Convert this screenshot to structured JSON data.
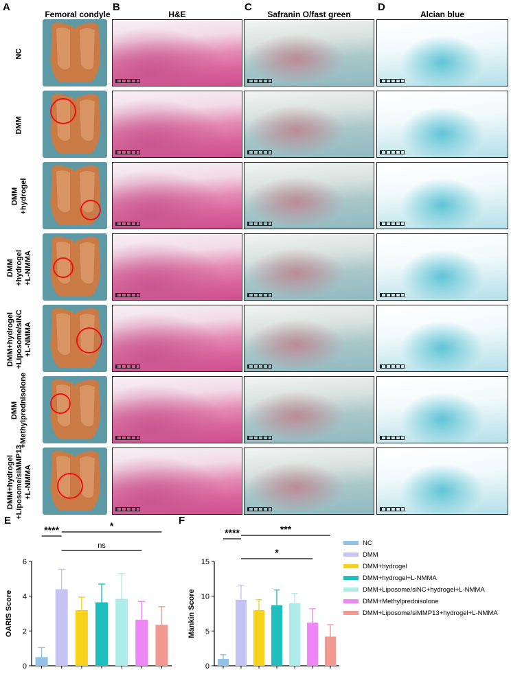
{
  "panels": {
    "A": "A",
    "B": "B",
    "C": "C",
    "D": "D",
    "E": "E",
    "F": "F"
  },
  "columns": {
    "condyle": "Femoral condyle",
    "he": "H&E",
    "safranin": "Safranin O/fast green",
    "alcian": "Alcian blue"
  },
  "rows": [
    {
      "line1": "NC",
      "line2": ""
    },
    {
      "line1": "DMM",
      "line2": ""
    },
    {
      "line1": "DMM",
      "line2": "+hydrogel"
    },
    {
      "line1": "DMM",
      "line2": "+hydrogel",
      "line3": "+L-NMMA"
    },
    {
      "line1": "DMM+hydrogel",
      "line2": "+Liposome/siNC",
      "line3": "+L-NMMA"
    },
    {
      "line1": "DMM",
      "line2": "+Methylprednisolone"
    },
    {
      "line1": "DMM+hydrogel",
      "line2": "+Liposome/siMMP13",
      "line3": "+L-NMMA"
    }
  ],
  "legend": [
    {
      "label": "NC",
      "color": "#93c2e8"
    },
    {
      "label": "DMM",
      "color": "#c5c3f2"
    },
    {
      "label": "DMM+hydrogel",
      "color": "#f8d11b"
    },
    {
      "label": "DMM+hydrogel+L-NMMA",
      "color": "#1fbfbd"
    },
    {
      "label": "DMM+Liposome/siNC+hydrogel+L-NMMA",
      "color": "#aeecea"
    },
    {
      "label": "DMM+Methylprednisolone",
      "color": "#ef86f5"
    },
    {
      "label": "DMM+Liposome/siMMP13+hydrogel+L-NMMA",
      "color": "#f29a92"
    }
  ],
  "chart_data": [
    {
      "type": "bar",
      "ylabel": "OARIS Score",
      "ylim": [
        0,
        6
      ],
      "yticks": [
        "0",
        "2",
        "4",
        "6"
      ],
      "values": [
        0.5,
        4.4,
        3.2,
        3.65,
        3.85,
        2.65,
        2.35
      ],
      "errors": [
        0.55,
        1.15,
        0.75,
        1.05,
        1.45,
        1.05,
        1.05
      ],
      "annotations": [
        {
          "text": "****",
          "from": 0,
          "to": 1
        },
        {
          "text": "*",
          "from": 1,
          "to": 6
        },
        {
          "text": "ns",
          "from": 1,
          "to": 5
        }
      ]
    },
    {
      "type": "bar",
      "ylabel": "Mankin Score",
      "ylim": [
        0,
        15
      ],
      "yticks": [
        "0",
        "5",
        "10",
        "15"
      ],
      "values": [
        1.0,
        9.5,
        8.0,
        8.7,
        9.0,
        6.2,
        4.2
      ],
      "errors": [
        0.6,
        2.1,
        1.5,
        2.2,
        1.4,
        2.0,
        1.7
      ],
      "annotations": [
        {
          "text": "****",
          "from": 0,
          "to": 1
        },
        {
          "text": "***",
          "from": 1,
          "to": 6
        },
        {
          "text": "*",
          "from": 1,
          "to": 5
        }
      ]
    }
  ]
}
